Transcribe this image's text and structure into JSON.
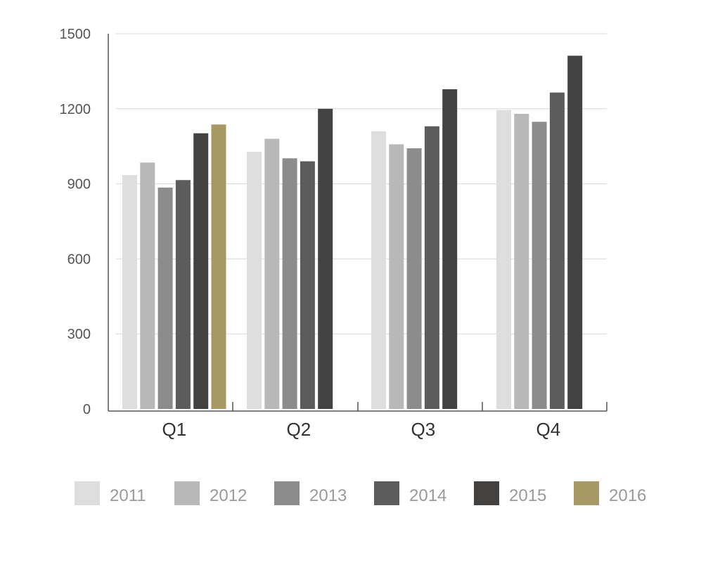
{
  "chart_data": {
    "type": "bar",
    "categories": [
      "Q1",
      "Q2",
      "Q3",
      "Q4"
    ],
    "series": [
      {
        "name": "2011",
        "color": "#dedede",
        "values": [
          935,
          1028,
          1110,
          1195
        ]
      },
      {
        "name": "2012",
        "color": "#b8b8b8",
        "values": [
          985,
          1080,
          1058,
          1180
        ]
      },
      {
        "name": "2013",
        "color": "#8c8c8c",
        "values": [
          885,
          1002,
          1042,
          1148
        ]
      },
      {
        "name": "2014",
        "color": "#5c5c5c",
        "values": [
          915,
          990,
          1130,
          1265
        ]
      },
      {
        "name": "2015",
        "color": "#444141",
        "values": [
          1102,
          1200,
          1278,
          1412
        ]
      },
      {
        "name": "2016",
        "color": "#a89862",
        "values": [
          1137,
          null,
          null,
          null
        ]
      }
    ],
    "ylim": [
      0,
      1500
    ],
    "yticks": [
      0,
      300,
      600,
      900,
      1200,
      1500
    ],
    "title": "",
    "xlabel": "",
    "ylabel": "",
    "grid": true,
    "legend_position": "bottom"
  }
}
